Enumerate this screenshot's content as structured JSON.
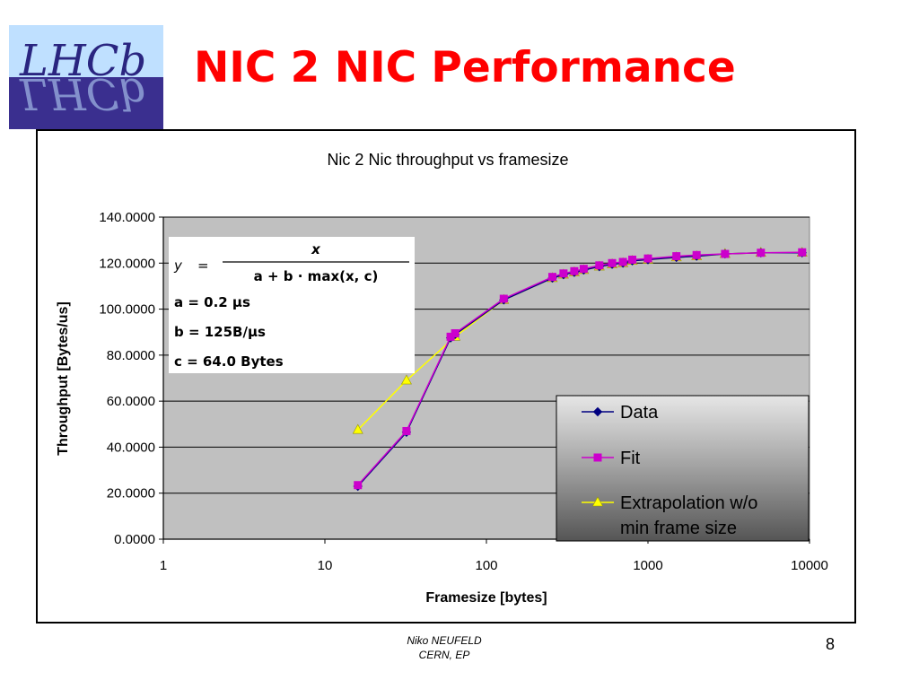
{
  "slide": {
    "title": "NIC 2 NIC Performance",
    "logo_text": "LHCb",
    "footer_author": "Niko NEUFELD",
    "footer_affiliation": "CERN, EP",
    "page_number": "8"
  },
  "colors": {
    "title": "#ff0000",
    "data": "#000080",
    "fit": "#cc00cc",
    "extrapolation": "#ffff00",
    "plot_bg": "#c0c0c0"
  },
  "formula": {
    "lhs": "y",
    "numerator": "x",
    "denominator": "a + b · max(x, c)",
    "params": [
      "a = 0.2 μs",
      "b = 125B/μs",
      "c = 64.0 Bytes"
    ]
  },
  "chart_data": {
    "type": "line",
    "title": "Nic 2 Nic throughput vs framesize",
    "xlabel": "Framesize [bytes]",
    "ylabel": "Throughput [Bytes/us]",
    "xscale": "log",
    "xlim": [
      1,
      10000
    ],
    "ylim": [
      0,
      140
    ],
    "x_ticks": [
      "1",
      "10",
      "100",
      "1000",
      "10000"
    ],
    "y_ticks": [
      "0.0000",
      "20.0000",
      "40.0000",
      "60.0000",
      "80.0000",
      "100.0000",
      "120.0000",
      "140.0000"
    ],
    "grid": "horizontal",
    "legend_position": "bottom-right",
    "series": [
      {
        "name": "Data",
        "marker": "diamond",
        "color": "#000080",
        "x": [
          16,
          32,
          60,
          64,
          128,
          256,
          300,
          350,
          400,
          500,
          600,
          700,
          800,
          1000,
          1500,
          2000,
          3000,
          5000,
          9000
        ],
        "y": [
          23,
          46.5,
          87.5,
          89,
          104,
          113.5,
          115,
          116,
          117,
          118.5,
          119.5,
          120,
          121,
          121.5,
          122.5,
          123,
          124,
          124.5,
          124.5
        ]
      },
      {
        "name": "Fit",
        "marker": "square",
        "color": "#cc00cc",
        "x": [
          16,
          32,
          60,
          64,
          128,
          256,
          300,
          350,
          400,
          500,
          600,
          700,
          800,
          1000,
          1500,
          2000,
          3000,
          5000,
          9000
        ],
        "y": [
          23.5,
          47,
          88,
          89.5,
          104.5,
          114,
          115.5,
          116.5,
          117.5,
          119,
          120,
          120.5,
          121.5,
          122,
          123,
          123.5,
          124,
          124.5,
          124.7
        ]
      },
      {
        "name": "Extrapolation w/o min frame size",
        "marker": "triangle",
        "color": "#ffff00",
        "x": [
          16,
          32,
          64,
          128,
          256,
          300,
          350,
          400,
          500,
          600,
          700,
          800,
          1000,
          1500,
          2000,
          3000,
          5000,
          9000
        ],
        "y": [
          47.5,
          69,
          88,
          104,
          113.5,
          115,
          116,
          117,
          118.5,
          119.5,
          120,
          121,
          121.5,
          122.5,
          123,
          124,
          124.5,
          124.5
        ]
      }
    ]
  }
}
